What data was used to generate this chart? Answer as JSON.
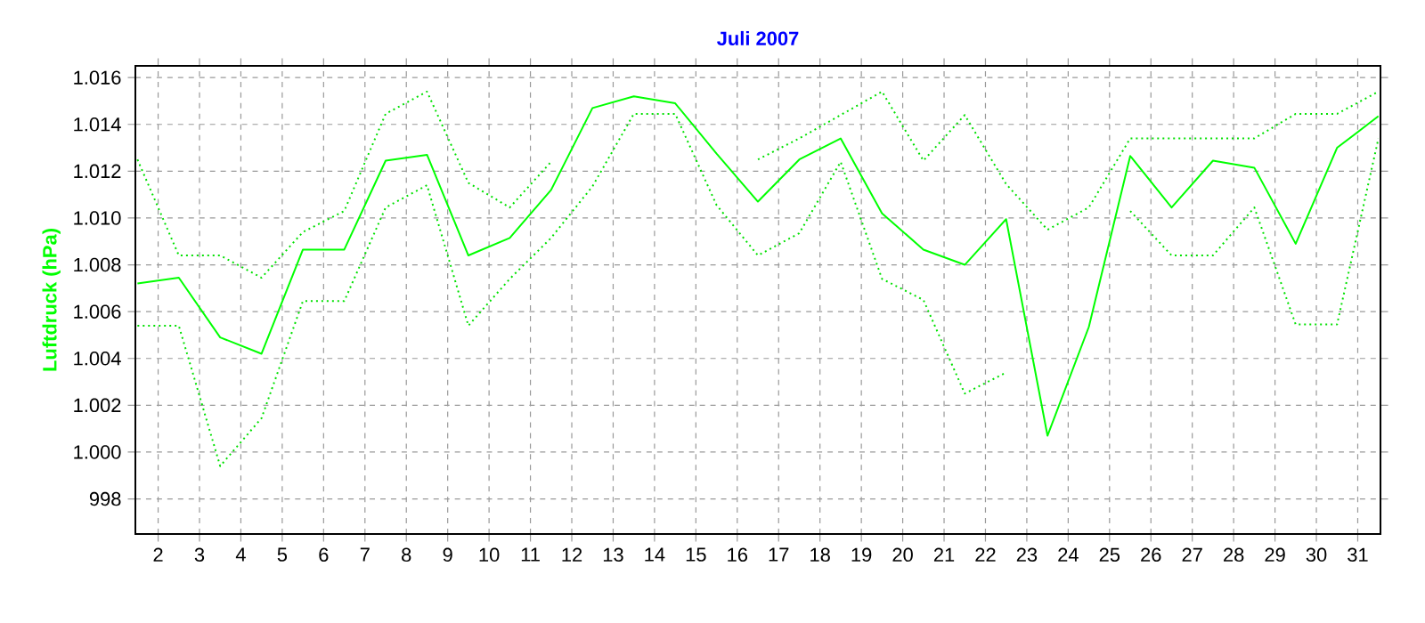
{
  "chart_data": {
    "type": "line",
    "title": "Juli 2007",
    "ylabel": "Luftdruck  (hPa)",
    "x": [
      1.5,
      2.5,
      3.5,
      4.5,
      5.5,
      6.5,
      7.5,
      8.5,
      9.5,
      10.5,
      11.5,
      12.5,
      13.5,
      14.5,
      15.5,
      16.5,
      17.5,
      18.5,
      19.5,
      20.5,
      21.5,
      22.5,
      23.5,
      24.5,
      25.5,
      26.5,
      27.5,
      28.5,
      29.5,
      30.5,
      31.5
    ],
    "xlim": [
      1.45,
      31.55
    ],
    "xticks": [
      2,
      3,
      4,
      5,
      6,
      7,
      8,
      9,
      10,
      11,
      12,
      13,
      14,
      15,
      16,
      17,
      18,
      19,
      20,
      21,
      22,
      23,
      24,
      25,
      26,
      27,
      28,
      29,
      30,
      31
    ],
    "ylim": [
      996.5,
      1016.5
    ],
    "yticks": [
      {
        "value": 998,
        "label": "998"
      },
      {
        "value": 1000,
        "label": "1.000"
      },
      {
        "value": 1002,
        "label": "1.002"
      },
      {
        "value": 1004,
        "label": "1.004"
      },
      {
        "value": 1006,
        "label": "1.006"
      },
      {
        "value": 1008,
        "label": "1.008"
      },
      {
        "value": 1010,
        "label": "1.010"
      },
      {
        "value": 1012,
        "label": "1.012"
      },
      {
        "value": 1014,
        "label": "1.014"
      },
      {
        "value": 1016,
        "label": "1.016"
      }
    ],
    "grid": true,
    "marker": "none",
    "series": [
      {
        "color": "#00ff00",
        "line_style": "solid",
        "values": [
          1007.2,
          1007.45,
          1004.9,
          1004.2,
          1008.65,
          1008.65,
          1012.45,
          1012.7,
          1008.4,
          1009.15,
          1011.2,
          1014.7,
          1015.2,
          1014.9,
          1012.75,
          1010.7,
          1012.5,
          1013.4,
          1010.2,
          1008.65,
          1008.0,
          1009.95,
          1000.7,
          1005.35,
          1012.65,
          1010.45,
          1012.45,
          1012.15,
          1008.9,
          1013.0,
          1014.35
        ]
      },
      {
        "color": "#00e000",
        "line_style": "dotted",
        "values": [
          1012.5,
          1008.4,
          1008.4,
          1007.45,
          1009.4,
          1010.3,
          1014.45,
          1015.4,
          1011.5,
          1010.45,
          1012.4,
          null,
          null,
          null,
          null,
          1012.5,
          1013.4,
          1014.4,
          1015.4,
          1012.45,
          1014.4,
          1011.45,
          1009.5,
          1010.45,
          1013.4,
          1013.4,
          1013.4,
          1013.4,
          1014.45,
          1014.45,
          1015.4
        ]
      },
      {
        "color": "#00e000",
        "line_style": "dotted",
        "values": [
          1005.4,
          1005.4,
          999.4,
          1001.45,
          1006.45,
          1006.45,
          1010.45,
          1011.4,
          1005.4,
          1007.4,
          1009.15,
          1011.35,
          1014.45,
          1014.45,
          1010.55,
          1008.4,
          1009.35,
          1012.4,
          1007.4,
          1006.5,
          1002.5,
          1003.4,
          null,
          null,
          1010.3,
          1008.4,
          1008.4,
          1010.45,
          1005.45,
          1005.45,
          1013.4
        ]
      }
    ]
  }
}
